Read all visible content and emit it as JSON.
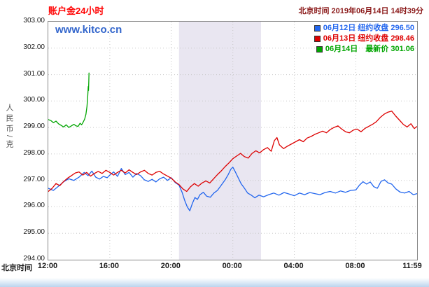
{
  "header": {
    "title": "账户金24小时",
    "datetime": "北京时间 2019年06月14日 14时39分"
  },
  "watermark": "www.kitco.cn",
  "axes": {
    "y_title": "人民币/克",
    "x_title": "北京时间"
  },
  "colors": {
    "title": "#ff0000",
    "datetime": "#8b1a1a",
    "watermark": "#3366cc",
    "grid": "#c8c8c8",
    "border": "#888888",
    "band": "#e9e6f1",
    "axis_text": "#1a1a1a",
    "y_axis_title": "#555555",
    "bottom_strip": "#bcd4ee"
  },
  "chart_data": {
    "type": "line",
    "title": "账户金24小时",
    "xlabel": "北京时间",
    "ylabel": "人民币/克",
    "x_unit": "minutes after 12:00 Beijing time",
    "xlim": [
      0,
      1439
    ],
    "ylim": [
      294,
      303
    ],
    "grid": true,
    "legend_position": "top-right",
    "band": {
      "from": 510,
      "to": 830
    },
    "y_ticks": [
      {
        "value": 303,
        "label": "303.00"
      },
      {
        "value": 302,
        "label": "302.00"
      },
      {
        "value": 301,
        "label": "301.00"
      },
      {
        "value": 300,
        "label": "300.00"
      },
      {
        "value": 299,
        "label": "299.00"
      },
      {
        "value": 298,
        "label": "298.00"
      },
      {
        "value": 297,
        "label": "297.00"
      },
      {
        "value": 296,
        "label": "296.00"
      },
      {
        "value": 295,
        "label": "295.00"
      },
      {
        "value": 294,
        "label": "294.00"
      }
    ],
    "x_ticks": [
      {
        "value": 0,
        "label": "12:00"
      },
      {
        "value": 240,
        "label": "16:00"
      },
      {
        "value": 480,
        "label": "20:00"
      },
      {
        "value": 720,
        "label": "00:00"
      },
      {
        "value": 960,
        "label": "04:00"
      },
      {
        "value": 1200,
        "label": "08:00"
      },
      {
        "value": 1439,
        "label": "11:59"
      }
    ],
    "series": [
      {
        "id": "jun12",
        "name": "06月12日 纽约收盘 296.50",
        "close_label": "纽约收盘",
        "close_value": "296.50",
        "color": "#2266ee",
        "points": [
          [
            0,
            296.7
          ],
          [
            20,
            296.62
          ],
          [
            40,
            296.78
          ],
          [
            60,
            296.95
          ],
          [
            80,
            297.06
          ],
          [
            100,
            297.0
          ],
          [
            120,
            297.12
          ],
          [
            140,
            297.3
          ],
          [
            155,
            297.18
          ],
          [
            170,
            297.35
          ],
          [
            185,
            297.12
          ],
          [
            200,
            297.05
          ],
          [
            215,
            297.15
          ],
          [
            230,
            297.1
          ],
          [
            240,
            297.2
          ],
          [
            255,
            297.32
          ],
          [
            270,
            297.15
          ],
          [
            285,
            297.45
          ],
          [
            300,
            297.22
          ],
          [
            315,
            297.3
          ],
          [
            330,
            297.12
          ],
          [
            345,
            297.26
          ],
          [
            360,
            297.18
          ],
          [
            375,
            297.02
          ],
          [
            390,
            296.96
          ],
          [
            405,
            297.04
          ],
          [
            420,
            296.94
          ],
          [
            435,
            297.06
          ],
          [
            450,
            297.12
          ],
          [
            465,
            297.0
          ],
          [
            480,
            297.1
          ],
          [
            495,
            296.92
          ],
          [
            510,
            296.82
          ],
          [
            522,
            296.55
          ],
          [
            532,
            296.25
          ],
          [
            542,
            296.0
          ],
          [
            552,
            295.85
          ],
          [
            562,
            296.12
          ],
          [
            572,
            296.35
          ],
          [
            582,
            296.28
          ],
          [
            592,
            296.46
          ],
          [
            605,
            296.55
          ],
          [
            618,
            296.4
          ],
          [
            632,
            296.36
          ],
          [
            646,
            296.52
          ],
          [
            660,
            296.62
          ],
          [
            675,
            296.82
          ],
          [
            690,
            297.02
          ],
          [
            702,
            297.22
          ],
          [
            712,
            297.42
          ],
          [
            720,
            297.5
          ],
          [
            730,
            297.32
          ],
          [
            742,
            297.08
          ],
          [
            752,
            296.88
          ],
          [
            764,
            296.72
          ],
          [
            778,
            296.52
          ],
          [
            792,
            296.44
          ],
          [
            806,
            296.34
          ],
          [
            822,
            296.44
          ],
          [
            840,
            296.38
          ],
          [
            860,
            296.46
          ],
          [
            880,
            296.52
          ],
          [
            900,
            296.44
          ],
          [
            920,
            296.54
          ],
          [
            940,
            296.48
          ],
          [
            960,
            296.42
          ],
          [
            980,
            296.52
          ],
          [
            1000,
            296.46
          ],
          [
            1020,
            296.54
          ],
          [
            1040,
            296.5
          ],
          [
            1060,
            296.46
          ],
          [
            1080,
            296.54
          ],
          [
            1100,
            296.58
          ],
          [
            1120,
            296.52
          ],
          [
            1140,
            296.6
          ],
          [
            1160,
            296.55
          ],
          [
            1180,
            296.62
          ],
          [
            1200,
            296.64
          ],
          [
            1214,
            296.82
          ],
          [
            1228,
            296.95
          ],
          [
            1242,
            296.86
          ],
          [
            1256,
            296.94
          ],
          [
            1270,
            296.76
          ],
          [
            1284,
            296.7
          ],
          [
            1298,
            296.96
          ],
          [
            1312,
            297.02
          ],
          [
            1326,
            296.9
          ],
          [
            1340,
            296.86
          ],
          [
            1356,
            296.68
          ],
          [
            1372,
            296.56
          ],
          [
            1390,
            296.52
          ],
          [
            1408,
            296.58
          ],
          [
            1424,
            296.46
          ],
          [
            1439,
            296.5
          ]
        ]
      },
      {
        "id": "jun13",
        "name": "06月13日 纽约收盘 298.46",
        "close_label": "纽约收盘",
        "close_value": "298.46",
        "color": "#dd0000",
        "points": [
          [
            0,
            296.58
          ],
          [
            15,
            296.7
          ],
          [
            30,
            296.88
          ],
          [
            45,
            296.8
          ],
          [
            60,
            296.96
          ],
          [
            75,
            297.08
          ],
          [
            90,
            297.18
          ],
          [
            105,
            297.28
          ],
          [
            120,
            297.32
          ],
          [
            135,
            297.2
          ],
          [
            150,
            297.3
          ],
          [
            165,
            297.16
          ],
          [
            180,
            297.26
          ],
          [
            195,
            297.34
          ],
          [
            210,
            297.26
          ],
          [
            225,
            297.38
          ],
          [
            240,
            297.3
          ],
          [
            255,
            297.2
          ],
          [
            270,
            297.3
          ],
          [
            285,
            297.38
          ],
          [
            300,
            297.28
          ],
          [
            315,
            297.4
          ],
          [
            330,
            297.3
          ],
          [
            345,
            297.22
          ],
          [
            360,
            297.32
          ],
          [
            375,
            297.38
          ],
          [
            390,
            297.26
          ],
          [
            405,
            297.2
          ],
          [
            420,
            297.3
          ],
          [
            435,
            297.34
          ],
          [
            450,
            297.24
          ],
          [
            465,
            297.16
          ],
          [
            480,
            297.08
          ],
          [
            495,
            296.94
          ],
          [
            510,
            296.84
          ],
          [
            525,
            296.68
          ],
          [
            540,
            296.58
          ],
          [
            555,
            296.76
          ],
          [
            570,
            296.88
          ],
          [
            585,
            296.78
          ],
          [
            600,
            296.9
          ],
          [
            615,
            296.98
          ],
          [
            630,
            296.9
          ],
          [
            645,
            297.06
          ],
          [
            660,
            297.22
          ],
          [
            675,
            297.36
          ],
          [
            690,
            297.52
          ],
          [
            705,
            297.66
          ],
          [
            720,
            297.82
          ],
          [
            735,
            297.92
          ],
          [
            750,
            298.02
          ],
          [
            765,
            297.9
          ],
          [
            780,
            297.84
          ],
          [
            795,
            298.02
          ],
          [
            810,
            298.12
          ],
          [
            825,
            298.04
          ],
          [
            840,
            298.16
          ],
          [
            855,
            298.24
          ],
          [
            870,
            298.1
          ],
          [
            882,
            298.5
          ],
          [
            892,
            298.62
          ],
          [
            902,
            298.34
          ],
          [
            918,
            298.2
          ],
          [
            934,
            298.3
          ],
          [
            950,
            298.38
          ],
          [
            965,
            298.46
          ],
          [
            980,
            298.54
          ],
          [
            995,
            298.46
          ],
          [
            1010,
            298.6
          ],
          [
            1025,
            298.66
          ],
          [
            1040,
            298.74
          ],
          [
            1055,
            298.8
          ],
          [
            1070,
            298.86
          ],
          [
            1085,
            298.8
          ],
          [
            1100,
            298.92
          ],
          [
            1115,
            299.0
          ],
          [
            1130,
            299.06
          ],
          [
            1145,
            298.94
          ],
          [
            1160,
            298.84
          ],
          [
            1175,
            298.8
          ],
          [
            1190,
            298.9
          ],
          [
            1205,
            298.94
          ],
          [
            1220,
            298.84
          ],
          [
            1235,
            298.96
          ],
          [
            1250,
            299.04
          ],
          [
            1265,
            299.12
          ],
          [
            1280,
            299.22
          ],
          [
            1295,
            299.38
          ],
          [
            1310,
            299.5
          ],
          [
            1325,
            299.58
          ],
          [
            1340,
            299.62
          ],
          [
            1355,
            299.44
          ],
          [
            1370,
            299.28
          ],
          [
            1385,
            299.12
          ],
          [
            1400,
            299.02
          ],
          [
            1415,
            299.14
          ],
          [
            1428,
            298.96
          ],
          [
            1439,
            299.04
          ]
        ]
      },
      {
        "id": "jun14",
        "name": "06月14日　最新价 301.06",
        "close_label": "最新价",
        "close_value": "301.06",
        "color": "#00a500",
        "points": [
          [
            0,
            299.3
          ],
          [
            10,
            299.26
          ],
          [
            20,
            299.18
          ],
          [
            30,
            299.24
          ],
          [
            40,
            299.14
          ],
          [
            50,
            299.08
          ],
          [
            60,
            299.02
          ],
          [
            70,
            299.1
          ],
          [
            80,
            299.0
          ],
          [
            90,
            299.06
          ],
          [
            100,
            299.12
          ],
          [
            108,
            299.06
          ],
          [
            116,
            299.04
          ],
          [
            124,
            299.16
          ],
          [
            130,
            299.1
          ],
          [
            136,
            299.2
          ],
          [
            142,
            299.32
          ],
          [
            147,
            299.5
          ],
          [
            151,
            299.8
          ],
          [
            154,
            300.2
          ],
          [
            156,
            300.55
          ],
          [
            157,
            300.4
          ],
          [
            158,
            300.75
          ],
          [
            159,
            301.06
          ]
        ]
      }
    ]
  }
}
